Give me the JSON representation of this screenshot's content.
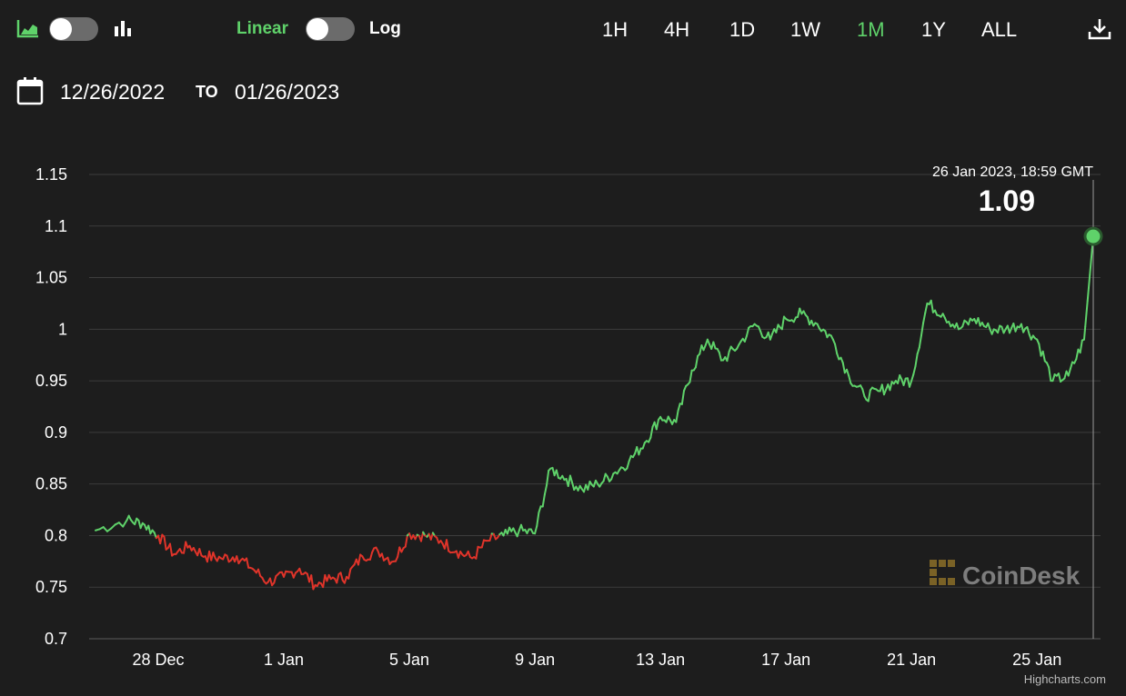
{
  "toolbar": {
    "area_chart_icon": "area-chart-icon",
    "bar_chart_icon": "bar-chart-icon",
    "linear_label": "Linear",
    "log_label": "Log",
    "ranges": [
      "1H",
      "4H",
      "1D",
      "1W",
      "1M",
      "1Y",
      "ALL"
    ],
    "active_range": "1M",
    "download_icon": "download-icon"
  },
  "date_range": {
    "from": "12/26/2022",
    "to_label": "TO",
    "to": "01/26/2023"
  },
  "tooltip": {
    "date": "26 Jan 2023, 18:59 GMT",
    "value": "1.09"
  },
  "watermark": "CoinDesk",
  "credits": "Highcharts.com",
  "colors": {
    "background": "#1d1d1d",
    "up": "#5fd26a",
    "down": "#e0342a",
    "grid": "#3d3d3d",
    "accent": "#5fd26a"
  },
  "chart_data": {
    "type": "line",
    "title": "",
    "xlabel": "",
    "ylabel": "",
    "ylim": [
      0.7,
      1.15
    ],
    "yticks": [
      "0.7",
      "0.75",
      "0.8",
      "0.85",
      "0.9",
      "0.95",
      "1",
      "1.05",
      "1.1",
      "1.15"
    ],
    "xticks": [
      "28 Dec",
      "1 Jan",
      "5 Jan",
      "9 Jan",
      "13 Jan",
      "17 Jan",
      "21 Jan",
      "25 Jan"
    ],
    "grid": true,
    "note_color": "green when value at or above ~0.80, red below",
    "series": [
      {
        "x": [
          "2022-12-26",
          "2022-12-27",
          "2022-12-27 12:00",
          "2022-12-28",
          "2022-12-28 12:00",
          "2022-12-29",
          "2022-12-29 12:00",
          "2022-12-30",
          "2022-12-30 12:00",
          "2022-12-31",
          "2022-12-31 12:00",
          "2023-01-01",
          "2023-01-01 12:00",
          "2023-01-02",
          "2023-01-02 12:00",
          "2023-01-03",
          "2023-01-03 12:00",
          "2023-01-04",
          "2023-01-04 12:00",
          "2023-01-05",
          "2023-01-05 12:00",
          "2023-01-06",
          "2023-01-06 12:00",
          "2023-01-07",
          "2023-01-07 12:00",
          "2023-01-08",
          "2023-01-08 12:00",
          "2023-01-09",
          "2023-01-09 12:00",
          "2023-01-10",
          "2023-01-10 12:00",
          "2023-01-11",
          "2023-01-11 12:00",
          "2023-01-12",
          "2023-01-12 12:00",
          "2023-01-13",
          "2023-01-13 12:00",
          "2023-01-14",
          "2023-01-14 12:00",
          "2023-01-15",
          "2023-01-15 12:00",
          "2023-01-16",
          "2023-01-16 12:00",
          "2023-01-17",
          "2023-01-17 12:00",
          "2023-01-18",
          "2023-01-18 12:00",
          "2023-01-19",
          "2023-01-19 12:00",
          "2023-01-20",
          "2023-01-20 12:00",
          "2023-01-21",
          "2023-01-21 12:00",
          "2023-01-22",
          "2023-01-22 12:00",
          "2023-01-23",
          "2023-01-23 12:00",
          "2023-01-24",
          "2023-01-24 12:00",
          "2023-01-25",
          "2023-01-25 12:00",
          "2023-01-26",
          "2023-01-26 12:00",
          "2023-01-26 18:59"
        ],
        "values": [
          0.805,
          0.815,
          0.812,
          0.8,
          0.782,
          0.79,
          0.78,
          0.778,
          0.78,
          0.768,
          0.755,
          0.76,
          0.768,
          0.752,
          0.758,
          0.76,
          0.78,
          0.785,
          0.775,
          0.802,
          0.8,
          0.795,
          0.785,
          0.778,
          0.795,
          0.8,
          0.805,
          0.802,
          0.865,
          0.855,
          0.845,
          0.85,
          0.86,
          0.872,
          0.89,
          0.915,
          0.91,
          0.96,
          0.99,
          0.97,
          0.985,
          1.005,
          0.99,
          1.01,
          1.015,
          1.005,
          0.99,
          0.955,
          0.935,
          0.94,
          0.95,
          0.95,
          1.025,
          1.015,
          1.0,
          1.01,
          1.0,
          1.0,
          1.005,
          0.99,
          0.95,
          0.955,
          0.99,
          1.09
        ]
      }
    ]
  }
}
